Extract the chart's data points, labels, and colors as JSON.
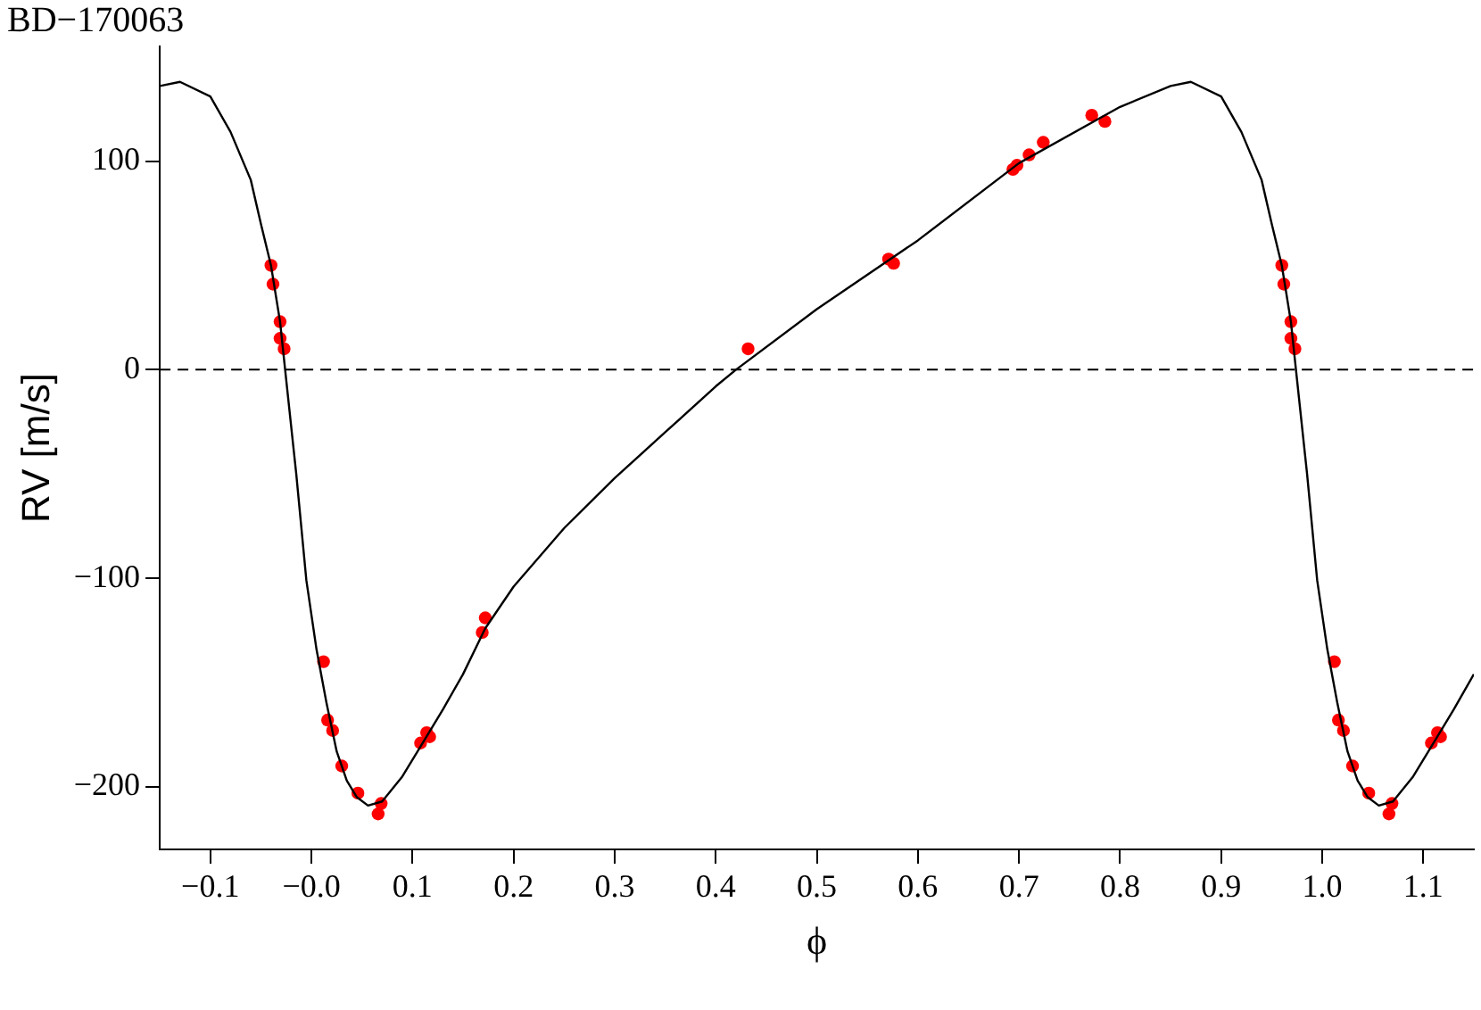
{
  "chart_data": {
    "type": "scatter",
    "title": "BD−170063",
    "xlabel": "ϕ",
    "ylabel": "RV [m/s]",
    "xlim": [
      -0.15,
      1.15
    ],
    "xticks": [
      {
        "value": -0.1,
        "label": "−0.1"
      },
      {
        "value": 0,
        "label": "−0.0"
      },
      0.1,
      0.2,
      0.3,
      0.4,
      0.5,
      0.6,
      0.7,
      0.8,
      0.9,
      {
        "value": 1,
        "label": "1.0"
      },
      1.1
    ],
    "ylim": [
      -230,
      155
    ],
    "yticks": [
      {
        "value": -200,
        "label": "−200"
      },
      {
        "value": -100,
        "label": "−100"
      },
      0,
      100
    ],
    "grid": false,
    "legend": false,
    "marker": "circle",
    "ref_lines": [
      {
        "axis": "y",
        "value": 0,
        "color": "#000000",
        "line_style": "dashed"
      }
    ],
    "series": [
      {
        "type": "line",
        "color": "#000000",
        "marker": "none",
        "line_style": "solid",
        "x": [
          -0.15,
          -0.13,
          -0.1,
          -0.08,
          -0.06,
          -0.05,
          -0.04,
          -0.031,
          -0.026,
          -0.015,
          -0.005,
          0.005,
          0.015,
          0.025,
          0.035,
          0.045,
          0.056,
          0.07,
          0.09,
          0.11,
          0.13,
          0.15,
          0.172,
          0.2,
          0.25,
          0.3,
          0.35,
          0.4,
          0.42,
          0.5,
          0.6,
          0.7,
          0.8,
          0.85,
          0.87,
          0.9,
          0.92,
          0.94,
          0.95,
          0.96,
          0.969,
          0.974,
          0.985,
          0.995,
          1.005,
          1.015,
          1.025,
          1.035,
          1.045,
          1.056,
          1.07,
          1.09,
          1.11,
          1.13,
          1.15
        ],
        "values": [
          136,
          138,
          131,
          114,
          91,
          70,
          50,
          23,
          0,
          -50,
          -101,
          -134,
          -160,
          -183,
          -197,
          -205,
          -209,
          -207,
          -195,
          -179,
          -163,
          -146,
          -124,
          -104,
          -76,
          -52,
          -30,
          -8,
          0,
          29,
          62,
          99,
          126,
          136,
          138,
          131,
          114,
          91,
          70,
          50,
          23,
          0,
          -50,
          -101,
          -134,
          -160,
          -183,
          -197,
          -205,
          -209,
          -207,
          -195,
          -179,
          -163,
          -146
        ]
      },
      {
        "type": "scatter",
        "color": "#ff0000",
        "x": [
          -0.04,
          -0.038,
          -0.031,
          -0.031,
          -0.027,
          0.012,
          0.016,
          0.021,
          0.03,
          0.046,
          0.069,
          0.066,
          0.108,
          0.114,
          0.117,
          0.169,
          0.172,
          0.432,
          0.571,
          0.576,
          0.694,
          0.698,
          0.71,
          0.724,
          0.772,
          0.785,
          0.96,
          0.962,
          0.969,
          0.969,
          0.973,
          1.012,
          1.016,
          1.021,
          1.03,
          1.046,
          1.069,
          1.066,
          1.108,
          1.114,
          1.117
        ],
        "values": [
          50,
          41,
          23,
          15,
          10,
          -140,
          -168,
          -173,
          -190,
          -203,
          -208,
          -213,
          -179,
          -174,
          -176,
          -126,
          -119,
          10,
          53,
          51,
          96,
          98,
          103,
          109,
          122,
          119,
          50,
          41,
          23,
          15,
          10,
          -140,
          -168,
          -173,
          -190,
          -203,
          -208,
          -213,
          -179,
          -174,
          -176
        ]
      }
    ]
  }
}
